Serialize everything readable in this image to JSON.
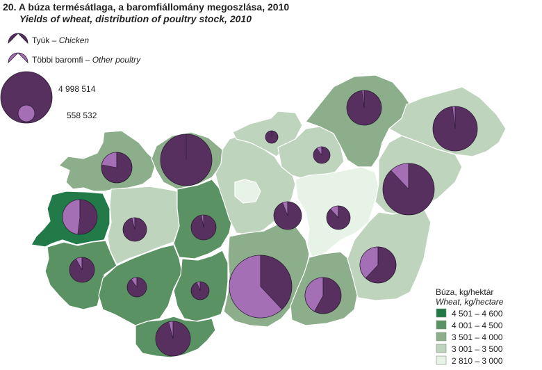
{
  "title": "20. A búza termésátlaga, a baromfiállomány megoszlása, 2010",
  "subtitle": "Yields of wheat, distribution of poultry stock, 2010",
  "colors": {
    "chicken": "#57305f",
    "other_poultry": "#a46fb5",
    "class_1": "#237a49",
    "class_2": "#5b9264",
    "class_3": "#8cae8b",
    "class_4": "#bfd4bd",
    "class_5": "#e8f3e7"
  },
  "poultry_legend": {
    "chicken_hu": "Tyúk – ",
    "chicken_en": "Chicken",
    "other_hu": "Többi baromfi – ",
    "other_en": "Other poultry",
    "max_value": "4 998 514",
    "min_value": "558 532"
  },
  "wheat_legend": {
    "title_hu": "Búza, kg/hektár",
    "title_en": "Wheat, kg/hectare",
    "classes": [
      {
        "label": "4 501 – 4 600"
      },
      {
        "label": "4 001 – 4 500"
      },
      {
        "label": "3 501 – 4 000"
      },
      {
        "label": "3 001 – 3 500"
      },
      {
        "label": "2 810 – 3 000"
      }
    ]
  },
  "counties": [
    {
      "id": "gyor",
      "cls": 3,
      "chicken_share": 0.78
    },
    {
      "id": "komarom",
      "cls": 3,
      "chicken_share": 1.0
    },
    {
      "id": "vas",
      "cls": 1,
      "chicken_share": 0.52
    },
    {
      "id": "veszprem",
      "cls": 4,
      "chicken_share": 0.96
    },
    {
      "id": "fejer",
      "cls": 2,
      "chicken_share": 0.97
    },
    {
      "id": "zala",
      "cls": 2,
      "chicken_share": 0.92
    },
    {
      "id": "somogy",
      "cls": 2,
      "chicken_share": 0.9
    },
    {
      "id": "tolna",
      "cls": 2,
      "chicken_share": 0.94
    },
    {
      "id": "baranya",
      "cls": 2,
      "chicken_share": 0.96
    },
    {
      "id": "pest",
      "cls": 4,
      "chicken_share": 0.94
    },
    {
      "id": "budapest",
      "cls": 5,
      "chicken_share": 0
    },
    {
      "id": "nograd",
      "cls": 4,
      "chicken_share": 1.0
    },
    {
      "id": "heves",
      "cls": 4,
      "chicken_share": 0.9
    },
    {
      "id": "borsod",
      "cls": 3,
      "chicken_share": 0.98
    },
    {
      "id": "szabolcs",
      "cls": 4,
      "chicken_share": 0.98
    },
    {
      "id": "szolnok",
      "cls": 5,
      "chicken_share": 0.88
    },
    {
      "id": "hajdu",
      "cls": 4,
      "chicken_share": 0.88
    },
    {
      "id": "bacs",
      "cls": 3,
      "chicken_share": 0.38
    },
    {
      "id": "csongrad",
      "cls": 3,
      "chicken_share": 0.58
    },
    {
      "id": "bekes",
      "cls": 4,
      "chicken_share": 0.62
    }
  ]
}
